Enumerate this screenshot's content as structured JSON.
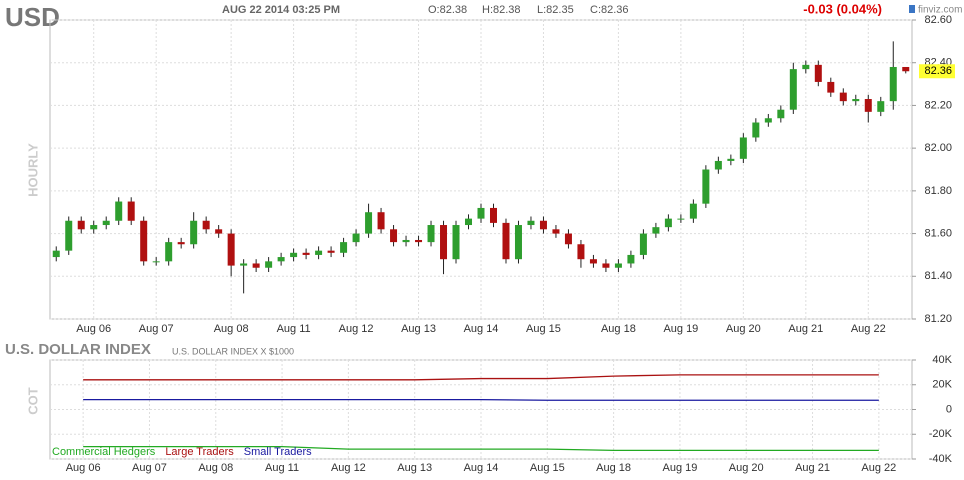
{
  "chart_data": [
    {
      "type": "candlestick",
      "title": "USD",
      "timestamp": "AUG 22 2014 03:25 PM",
      "ohlc_labels": [
        "O:82.38",
        "H:82.38",
        "L:82.35",
        "C:82.36"
      ],
      "change_label": "-0.03 (0.04%)",
      "brand": "finviz.com",
      "y_label": "HOURLY",
      "close_label": "82.36",
      "up_color": "#2e9e2e",
      "down_color": "#b01010",
      "grid": true,
      "categories": [
        null,
        null,
        null,
        "Aug 06",
        null,
        null,
        null,
        null,
        "Aug 07",
        null,
        null,
        null,
        null,
        null,
        "Aug 08",
        null,
        null,
        null,
        null,
        "Aug 11",
        null,
        null,
        null,
        null,
        "Aug 12",
        null,
        null,
        null,
        null,
        "Aug 13",
        null,
        null,
        null,
        null,
        "Aug 14",
        null,
        null,
        null,
        null,
        "Aug 15",
        null,
        null,
        null,
        null,
        null,
        "Aug 18",
        null,
        null,
        null,
        null,
        "Aug 19",
        null,
        null,
        null,
        null,
        "Aug 20",
        null,
        null,
        null,
        null,
        "Aug 21",
        null,
        null,
        null,
        null,
        "Aug 22",
        null,
        null,
        null
      ],
      "open": [
        81.49,
        81.52,
        81.66,
        81.62,
        81.64,
        81.66,
        81.75,
        81.66,
        81.47,
        81.47,
        81.56,
        81.55,
        81.66,
        81.62,
        81.6,
        81.45,
        81.46,
        81.44,
        81.47,
        81.49,
        81.51,
        81.5,
        81.52,
        81.51,
        81.56,
        81.6,
        81.7,
        81.62,
        81.56,
        81.57,
        81.56,
        81.64,
        81.48,
        81.64,
        81.67,
        81.72,
        81.65,
        81.48,
        81.64,
        81.66,
        81.62,
        81.6,
        81.55,
        81.48,
        81.46,
        81.44,
        81.46,
        81.5,
        81.6,
        81.63,
        81.67,
        81.67,
        81.74,
        81.9,
        81.94,
        81.95,
        82.05,
        82.12,
        82.14,
        82.18,
        82.37,
        82.39,
        82.31,
        82.26,
        82.22,
        82.23,
        82.17,
        82.22,
        82.38
      ],
      "high": [
        81.54,
        81.68,
        81.68,
        81.66,
        81.68,
        81.77,
        81.77,
        81.68,
        81.49,
        81.58,
        81.58,
        81.7,
        81.68,
        81.64,
        81.62,
        81.48,
        81.48,
        81.49,
        81.51,
        81.53,
        81.53,
        81.54,
        81.54,
        81.58,
        81.62,
        81.74,
        81.72,
        81.64,
        81.59,
        81.59,
        81.66,
        81.66,
        81.66,
        81.69,
        81.74,
        81.74,
        81.67,
        81.66,
        81.68,
        81.68,
        81.64,
        81.62,
        81.57,
        81.5,
        81.48,
        81.48,
        81.52,
        81.62,
        81.65,
        81.69,
        81.69,
        81.76,
        81.92,
        81.96,
        81.97,
        82.07,
        82.14,
        82.16,
        82.2,
        82.4,
        82.41,
        82.41,
        82.33,
        82.28,
        82.25,
        82.25,
        82.24,
        82.5,
        82.38
      ],
      "low": [
        81.47,
        81.5,
        81.6,
        81.6,
        81.62,
        81.64,
        81.64,
        81.45,
        81.45,
        81.45,
        81.53,
        81.53,
        81.6,
        81.58,
        81.4,
        81.32,
        81.42,
        81.42,
        81.45,
        81.47,
        81.48,
        81.48,
        81.49,
        81.49,
        81.54,
        81.58,
        81.6,
        81.54,
        81.54,
        81.54,
        81.54,
        81.41,
        81.46,
        81.62,
        81.65,
        81.63,
        81.46,
        81.46,
        81.62,
        81.6,
        81.58,
        81.53,
        81.44,
        81.44,
        81.42,
        81.42,
        81.44,
        81.48,
        81.58,
        81.61,
        81.65,
        81.65,
        81.72,
        81.88,
        81.92,
        81.93,
        82.03,
        82.1,
        82.12,
        82.16,
        82.35,
        82.29,
        82.24,
        82.2,
        82.2,
        82.12,
        82.15,
        82.18,
        82.35
      ],
      "close": [
        81.52,
        81.66,
        81.62,
        81.64,
        81.66,
        81.75,
        81.66,
        81.47,
        81.47,
        81.56,
        81.55,
        81.66,
        81.62,
        81.6,
        81.45,
        81.46,
        81.44,
        81.47,
        81.49,
        81.51,
        81.5,
        81.52,
        81.51,
        81.56,
        81.6,
        81.7,
        81.62,
        81.56,
        81.57,
        81.56,
        81.64,
        81.48,
        81.64,
        81.67,
        81.72,
        81.65,
        81.48,
        81.64,
        81.66,
        81.62,
        81.6,
        81.55,
        81.48,
        81.46,
        81.44,
        81.46,
        81.5,
        81.6,
        81.63,
        81.67,
        81.67,
        81.74,
        81.9,
        81.94,
        81.95,
        82.05,
        82.12,
        82.14,
        82.18,
        82.37,
        82.39,
        82.31,
        82.26,
        82.22,
        82.23,
        82.17,
        82.22,
        82.38,
        82.36
      ],
      "ylim": [
        81.2,
        82.6
      ],
      "yticks": [
        {
          "value": 81.2,
          "label": "81.20"
        },
        {
          "value": 81.4,
          "label": "81.40"
        },
        {
          "value": 81.6,
          "label": "81.60"
        },
        {
          "value": 81.8,
          "label": "81.80"
        },
        {
          "value": 82,
          "label": "82.00"
        },
        {
          "value": 82.2,
          "label": "82.20"
        },
        {
          "value": 82.4,
          "label": "82.40"
        },
        {
          "value": 82.6,
          "label": "82.60"
        }
      ]
    },
    {
      "type": "line",
      "title": "U.S. DOLLAR INDEX",
      "subtitle": "U.S. DOLLAR INDEX X $1000",
      "y_label": "COT",
      "legend": "bottom-left",
      "categories": [
        "Aug 06",
        "Aug 07",
        "Aug 08",
        "Aug 11",
        "Aug 12",
        "Aug 13",
        "Aug 14",
        "Aug 15",
        "Aug 18",
        "Aug 19",
        "Aug 20",
        "Aug 21",
        "Aug 22"
      ],
      "series": [
        {
          "name": "Commercial Hedgers",
          "color": "#22aa22",
          "values": [
            -30000,
            -30000,
            -30000,
            -30000,
            -32000,
            -32000,
            -32000,
            -32000,
            -33000,
            -33000,
            -33000,
            -33000,
            -33000
          ]
        },
        {
          "name": "Large Traders",
          "color": "#aa1111",
          "values": [
            24000,
            24000,
            24000,
            24000,
            24000,
            24000,
            25000,
            25000,
            27000,
            28000,
            28000,
            28000,
            28000
          ]
        },
        {
          "name": "Small Traders",
          "color": "#1a1aa0",
          "values": [
            8000,
            8000,
            8000,
            8000,
            8000,
            8000,
            8000,
            7500,
            7500,
            7500,
            7500,
            7500,
            7500
          ]
        }
      ],
      "ylim": [
        -40000,
        40000
      ],
      "yticks": [
        {
          "value": -40000,
          "label": "-40K"
        },
        {
          "value": -20000,
          "label": "-20K"
        },
        {
          "value": 0,
          "label": "0"
        },
        {
          "value": 20000,
          "label": "20K"
        },
        {
          "value": 40000,
          "label": "40K"
        }
      ]
    }
  ]
}
